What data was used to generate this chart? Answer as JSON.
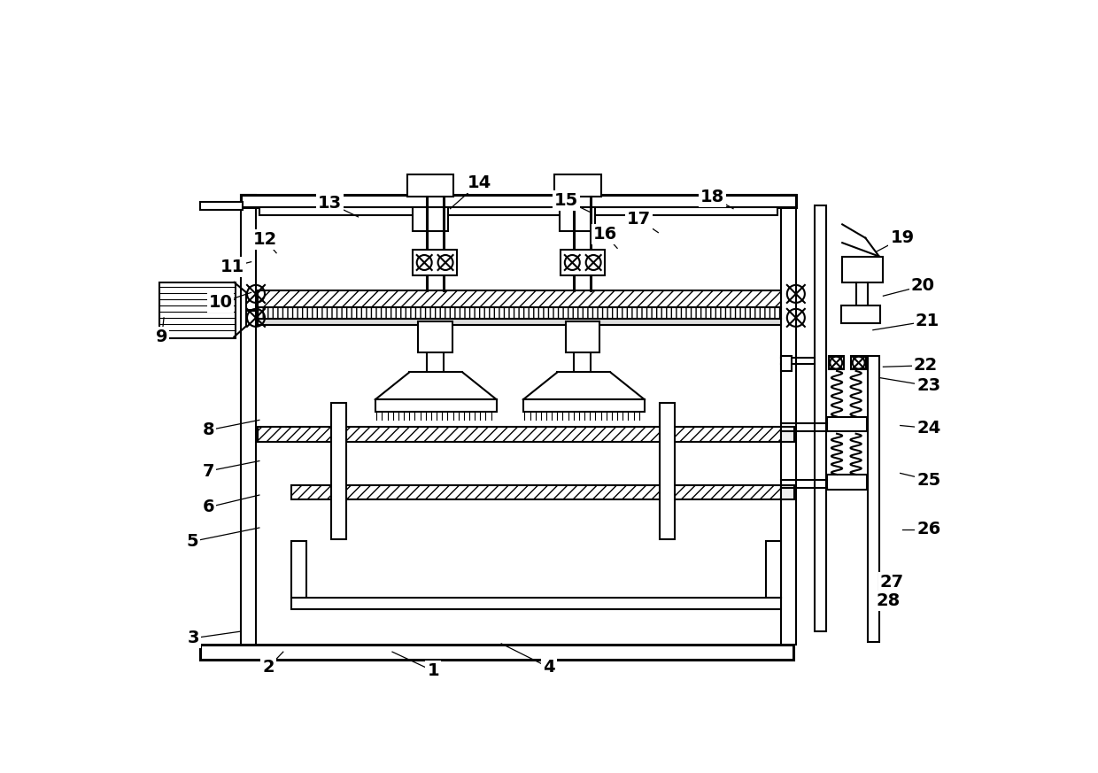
{
  "bg_color": "#ffffff",
  "lw": 1.5,
  "lw2": 2.2,
  "fig_w": 12.4,
  "fig_h": 8.73,
  "dpi": 100,
  "labels": {
    "1": [
      430,
      848,
      370,
      820
    ],
    "2": [
      188,
      843,
      210,
      820
    ],
    "3": [
      78,
      800,
      148,
      790
    ],
    "4": [
      600,
      843,
      530,
      808
    ],
    "5": [
      77,
      658,
      175,
      638
    ],
    "6": [
      100,
      608,
      175,
      590
    ],
    "7": [
      100,
      555,
      175,
      540
    ],
    "8": [
      100,
      495,
      175,
      480
    ],
    "9": [
      32,
      358,
      35,
      330
    ],
    "10": [
      118,
      308,
      163,
      293
    ],
    "11": [
      135,
      255,
      163,
      248
    ],
    "12": [
      183,
      215,
      200,
      235
    ],
    "13": [
      278,
      162,
      320,
      182
    ],
    "14": [
      498,
      132,
      455,
      170
    ],
    "15": [
      625,
      158,
      660,
      175
    ],
    "16": [
      682,
      208,
      700,
      228
    ],
    "17": [
      732,
      186,
      760,
      205
    ],
    "18": [
      840,
      153,
      870,
      170
    ],
    "19": [
      1118,
      213,
      1080,
      233
    ],
    "20": [
      1148,
      283,
      1090,
      298
    ],
    "21": [
      1155,
      335,
      1075,
      348
    ],
    "22": [
      1152,
      400,
      1090,
      402
    ],
    "23": [
      1157,
      430,
      1085,
      418
    ],
    "24": [
      1157,
      492,
      1115,
      488
    ],
    "25": [
      1157,
      568,
      1115,
      558
    ],
    "26": [
      1157,
      640,
      1118,
      640
    ],
    "27": [
      1103,
      718,
      1098,
      710
    ],
    "28": [
      1098,
      745,
      1085,
      755
    ]
  }
}
